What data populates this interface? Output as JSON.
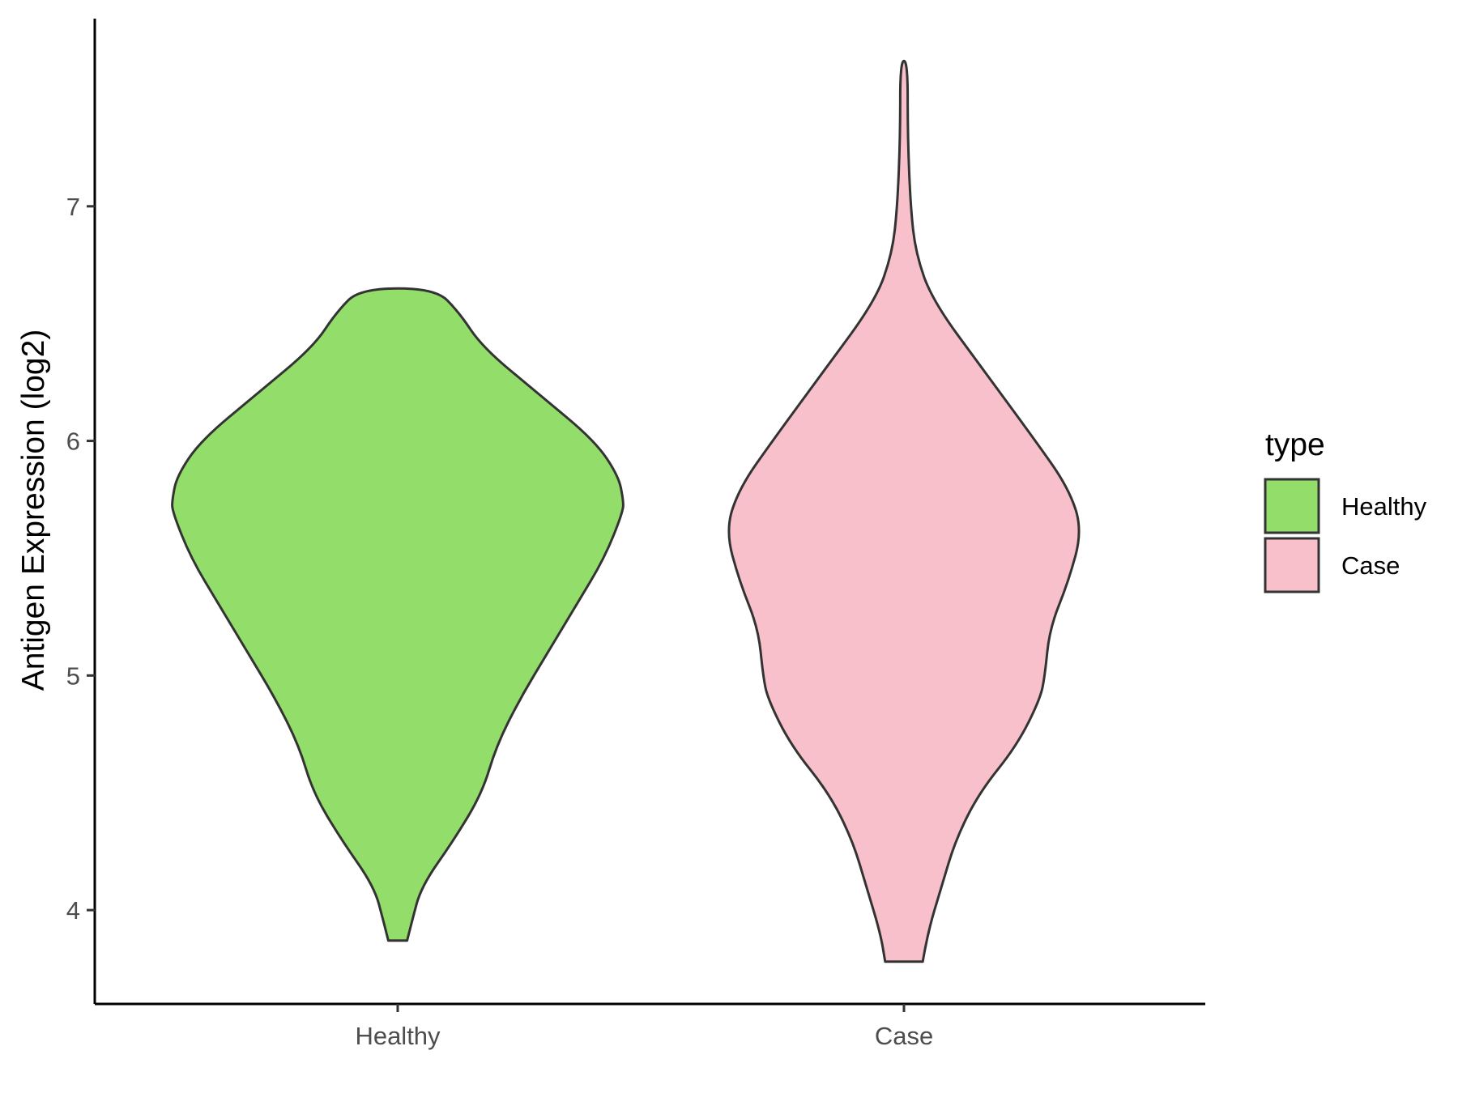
{
  "chart_data": {
    "type": "violin",
    "xlabel": "",
    "ylabel": "Antigen Expression (log2)",
    "ylim": [
      3.6,
      7.8
    ],
    "y_ticks": [
      4,
      5,
      6,
      7
    ],
    "categories": [
      "Healthy",
      "Case"
    ],
    "grid": false,
    "legend": {
      "title": "type",
      "position": "right",
      "entries": [
        {
          "label": "Healthy",
          "color": "#93DD6B"
        },
        {
          "label": "Case",
          "color": "#F7C0CB"
        }
      ]
    },
    "series": [
      {
        "category": "Healthy",
        "color": "#93DD6B",
        "min": 3.87,
        "max": 6.65,
        "density_profile": [
          {
            "y": 3.87,
            "half_width": 0.02
          },
          {
            "y": 3.95,
            "half_width": 0.03
          },
          {
            "y": 4.1,
            "half_width": 0.05
          },
          {
            "y": 4.3,
            "half_width": 0.12
          },
          {
            "y": 4.5,
            "half_width": 0.18
          },
          {
            "y": 4.7,
            "half_width": 0.21
          },
          {
            "y": 4.9,
            "half_width": 0.26
          },
          {
            "y": 5.1,
            "half_width": 0.32
          },
          {
            "y": 5.3,
            "half_width": 0.38
          },
          {
            "y": 5.5,
            "half_width": 0.44
          },
          {
            "y": 5.7,
            "half_width": 0.48
          },
          {
            "y": 5.75,
            "half_width": 0.48
          },
          {
            "y": 5.85,
            "half_width": 0.47
          },
          {
            "y": 6.0,
            "half_width": 0.42
          },
          {
            "y": 6.2,
            "half_width": 0.3
          },
          {
            "y": 6.4,
            "half_width": 0.18
          },
          {
            "y": 6.55,
            "half_width": 0.13
          },
          {
            "y": 6.65,
            "half_width": 0.08
          }
        ]
      },
      {
        "category": "Case",
        "color": "#F7C0CB",
        "min": 3.78,
        "max": 7.62,
        "density_profile": [
          {
            "y": 3.78,
            "half_width": 0.04
          },
          {
            "y": 3.9,
            "half_width": 0.05
          },
          {
            "y": 4.1,
            "half_width": 0.08
          },
          {
            "y": 4.3,
            "half_width": 0.11
          },
          {
            "y": 4.5,
            "half_width": 0.16
          },
          {
            "y": 4.7,
            "half_width": 0.24
          },
          {
            "y": 4.9,
            "half_width": 0.29
          },
          {
            "y": 5.0,
            "half_width": 0.3
          },
          {
            "y": 5.2,
            "half_width": 0.31
          },
          {
            "y": 5.4,
            "half_width": 0.35
          },
          {
            "y": 5.62,
            "half_width": 0.38
          },
          {
            "y": 5.8,
            "half_width": 0.35
          },
          {
            "y": 6.0,
            "half_width": 0.28
          },
          {
            "y": 6.3,
            "half_width": 0.17
          },
          {
            "y": 6.6,
            "half_width": 0.06
          },
          {
            "y": 6.8,
            "half_width": 0.025
          },
          {
            "y": 7.0,
            "half_width": 0.014
          },
          {
            "y": 7.3,
            "half_width": 0.008
          },
          {
            "y": 7.62,
            "half_width": 0.008
          }
        ]
      }
    ]
  }
}
